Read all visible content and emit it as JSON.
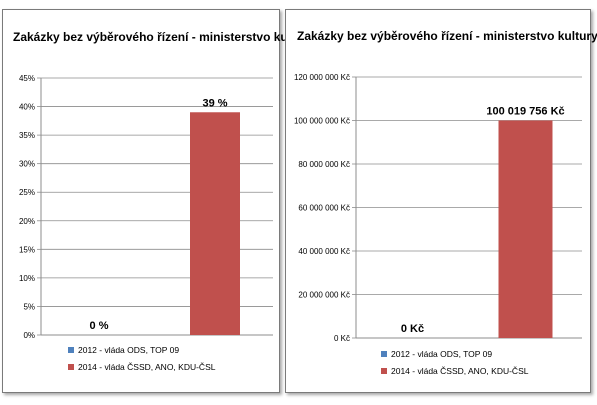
{
  "chart_data": [
    {
      "type": "bar",
      "title": "Zakázky bez výběrového řízení - ministerstvo kultury",
      "categories": [
        "2012 -  vláda ODS, TOP 09",
        "2014 - vláda ČSSD, ANO, KDU-ČSL"
      ],
      "values": [
        0,
        39
      ],
      "data_labels": [
        "0 %",
        "39 %"
      ],
      "ylim": [
        0,
        45
      ],
      "yticks": [
        0,
        5,
        10,
        15,
        20,
        25,
        30,
        35,
        40,
        45
      ],
      "ytick_labels": [
        "0%",
        "5%",
        "10%",
        "15%",
        "20%",
        "25%",
        "30%",
        "35%",
        "40%",
        "45%"
      ],
      "legend": [
        "2012 -  vláda ODS, TOP 09",
        "2014 - vláda ČSSD, ANO, KDU-ČSL"
      ],
      "colors": [
        "#4f81bd",
        "#c0504d"
      ],
      "grid": true,
      "legend_position": "bottom"
    },
    {
      "type": "bar",
      "title": "Zakázky bez výběrového řízení - ministerstvo kultury",
      "categories": [
        "2012 -  vláda ODS, TOP 09",
        "2014 - vláda ČSSD, ANO, KDU-ČSL"
      ],
      "values": [
        0,
        100019756
      ],
      "data_labels": [
        "0 Kč",
        "100 019 756 Kč"
      ],
      "ylim": [
        0,
        120000000
      ],
      "yticks": [
        0,
        20000000,
        40000000,
        60000000,
        80000000,
        100000000,
        120000000
      ],
      "ytick_labels": [
        "0 Kč",
        "20 000 000 Kč",
        "40 000 000 Kč",
        "60 000 000 Kč",
        "80 000 000 Kč",
        "100 000 000 Kč",
        "120 000 000 Kč"
      ],
      "legend": [
        "2012 -  vláda ODS, TOP 09",
        "2014 - vláda ČSSD, ANO, KDU-ČSL"
      ],
      "colors": [
        "#4f81bd",
        "#c0504d"
      ],
      "grid": true,
      "legend_position": "bottom"
    }
  ]
}
